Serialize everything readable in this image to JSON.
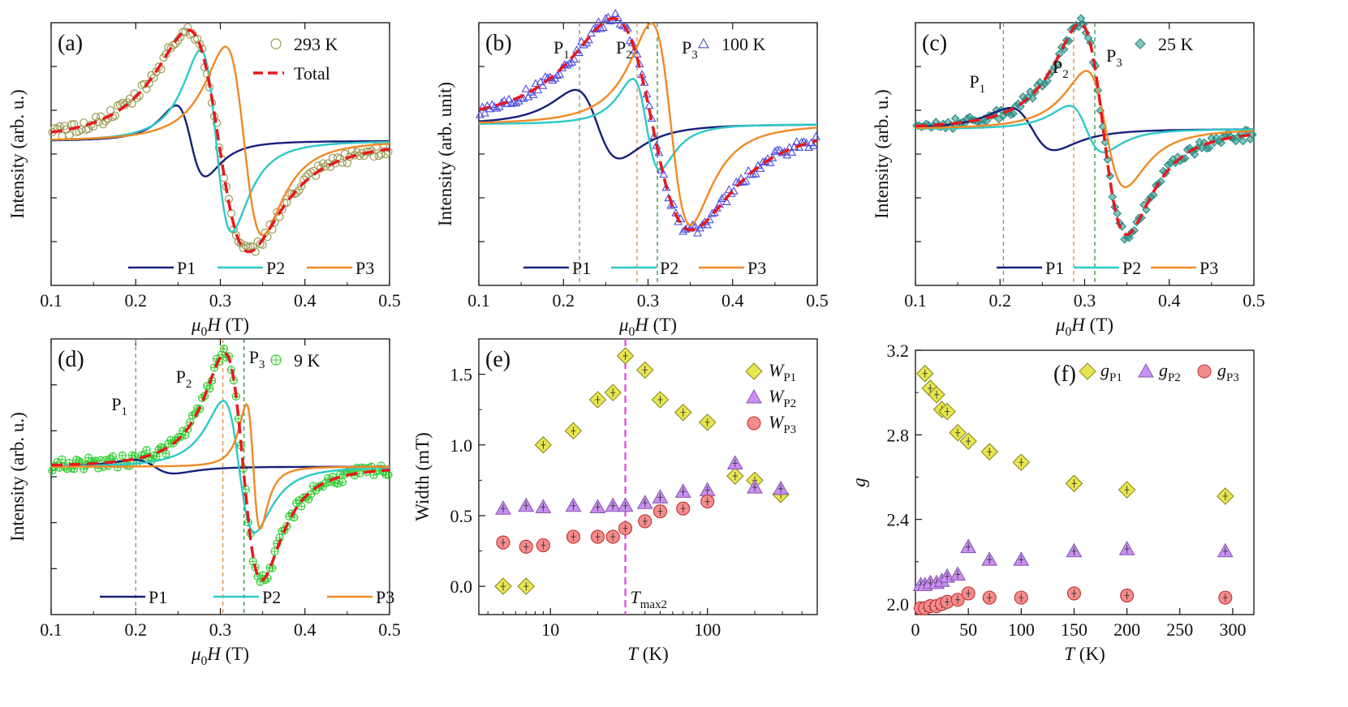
{
  "colors": {
    "P1": "#16217a",
    "P2": "#2ec9c7",
    "P3": "#f08a25",
    "total": "#e8181c",
    "exp_a": "#9a9a55",
    "exp_b": "#4a4adf",
    "exp_c": "#2a8f86",
    "exp_d": "#33cc33",
    "vline1": "#8a8a8a",
    "vline2": "#e08a40",
    "vline3": "#2f8f3f",
    "tmax": "#e040e0",
    "gP1": "#e8e650",
    "gP2": "#c98ff2",
    "gP3": "#f58c8c"
  },
  "chart_data": [
    {
      "id": "a",
      "type": "line",
      "panel_label": "(a)",
      "xlabel_italic": "μ",
      "xlabel_sub": "0",
      "xlabel_var": "H",
      "xlabel_unit": " (T)",
      "ylabel": "Intensity (arb. u.)",
      "xlim": [
        0.1,
        0.5
      ],
      "xticks": [
        "0.1",
        "0.2",
        "0.3",
        "0.4",
        "0.5"
      ],
      "temperature_label": "293 K",
      "total_label": "Total",
      "series": [
        {
          "name": "P1",
          "center": 0.265,
          "width": 0.03,
          "amp": 0.32,
          "base": 0.0
        },
        {
          "name": "P2",
          "center": 0.295,
          "width": 0.032,
          "amp": 0.82,
          "base": 0.0
        },
        {
          "name": "P3",
          "center": 0.328,
          "width": 0.038,
          "amp": 0.85,
          "base": 0.0
        }
      ],
      "experiment": {
        "marker": "circle",
        "center": 0.298,
        "width": 0.062,
        "amp": 1.0,
        "base": 0.0
      },
      "ylim": [
        -1.1,
        0.9
      ]
    },
    {
      "id": "b",
      "type": "line",
      "panel_label": "(b)",
      "xlabel_italic": "μ",
      "xlabel_sub": "0",
      "xlabel_var": "H",
      "xlabel_unit": " (T)",
      "ylabel": "Intensity (arb. unit)",
      "xlim": [
        0.1,
        0.5
      ],
      "xticks": [
        "0.1",
        "0.2",
        "0.3",
        "0.4",
        "0.5"
      ],
      "temperature_label": "100 K",
      "peak_labels": [
        "P",
        "P",
        "P"
      ],
      "peak_subs": [
        "1",
        "2",
        "3"
      ],
      "vlines": [
        0.219,
        0.287,
        0.311
      ],
      "series": [
        {
          "name": "P1",
          "center": 0.24,
          "width": 0.045,
          "amp": 0.34,
          "base": 0.05
        },
        {
          "name": "P2",
          "center": 0.298,
          "width": 0.028,
          "amp": 0.45,
          "base": 0.05
        },
        {
          "name": "P3",
          "center": 0.327,
          "width": 0.04,
          "amp": 1.0,
          "base": 0.05
        }
      ],
      "experiment": {
        "marker": "triangle",
        "center": 0.305,
        "width": 0.08,
        "amp": 1.05,
        "base": 0.05
      },
      "ylim": [
        -1.3,
        0.9
      ]
    },
    {
      "id": "c",
      "type": "line",
      "panel_label": "(c)",
      "xlabel_italic": "μ",
      "xlabel_sub": "0",
      "xlabel_var": "H",
      "xlabel_unit": " (T)",
      "ylabel": "Intensity (arb. u.)",
      "xlim": [
        0.1,
        0.5
      ],
      "xticks": [
        "0.1",
        "0.2",
        "0.3",
        "0.4",
        "0.5"
      ],
      "temperature_label": "25 K",
      "peak_labels": [
        "P",
        "P",
        "P"
      ],
      "peak_subs": [
        "1",
        "2",
        "3"
      ],
      "vlines": [
        0.204,
        0.287,
        0.312
      ],
      "series": [
        {
          "name": "P1",
          "center": 0.238,
          "width": 0.045,
          "amp": 0.2,
          "base": 0.0
        },
        {
          "name": "P2",
          "center": 0.302,
          "width": 0.035,
          "amp": 0.22,
          "base": 0.0
        },
        {
          "name": "P3",
          "center": 0.325,
          "width": 0.04,
          "amp": 0.55,
          "base": 0.0
        }
      ],
      "experiment": {
        "marker": "diamond",
        "center": 0.322,
        "width": 0.048,
        "amp": 1.0,
        "base": 0.0
      },
      "ylim": [
        -1.25,
        0.85
      ]
    },
    {
      "id": "d",
      "type": "line",
      "panel_label": "(d)",
      "xlabel_italic": "μ",
      "xlabel_sub": "0",
      "xlabel_var": "H",
      "xlabel_unit": " (T)",
      "ylabel": "Intensity (arb. u.)",
      "xlim": [
        0.1,
        0.5
      ],
      "xticks": [
        "0.1",
        "0.2",
        "0.3",
        "0.4",
        "0.5"
      ],
      "temperature_label": "9 K",
      "peak_labels": [
        "P",
        "P",
        "P"
      ],
      "peak_subs": [
        "1",
        "2",
        "3"
      ],
      "vlines": [
        0.2,
        0.303,
        0.328
      ],
      "series": [
        {
          "name": "P1",
          "center": 0.222,
          "width": 0.04,
          "amp": 0.06,
          "base": 0.0
        },
        {
          "name": "P2",
          "center": 0.322,
          "width": 0.032,
          "amp": 0.58,
          "base": 0.0
        },
        {
          "name": "P3",
          "center": 0.339,
          "width": 0.014,
          "amp": 0.55,
          "base": 0.0
        }
      ],
      "experiment": {
        "marker": "circlecross",
        "center": 0.327,
        "width": 0.038,
        "amp": 1.0,
        "base": 0.0
      },
      "ylim": [
        -1.1,
        0.95
      ]
    },
    {
      "id": "e",
      "type": "scatter",
      "panel_label": "(e)",
      "xlabel_var": "T",
      "xlabel_unit": " (K)",
      "ylabel": "Width (mT)",
      "xscale": "log",
      "xlim": [
        3.5,
        500
      ],
      "ylim": [
        -0.2,
        1.75
      ],
      "xticks": [
        {
          "v": 10,
          "label": "10"
        },
        {
          "v": 100,
          "label": "100"
        }
      ],
      "yticks": [
        {
          "v": 0.0,
          "label": "0.0"
        },
        {
          "v": 0.5,
          "label": "0.5"
        },
        {
          "v": 1.0,
          "label": "1.0"
        },
        {
          "v": 1.5,
          "label": "1.5"
        }
      ],
      "vline_x": 30,
      "vline_label": "T",
      "vline_sub": "max2",
      "legend_var": "W",
      "series": [
        {
          "name": "WP1",
          "label_sub": "P1",
          "marker": "diamond",
          "x": [
            5,
            7,
            9,
            14,
            20,
            25,
            30,
            40,
            50,
            70,
            100,
            150,
            200,
            293
          ],
          "y": [
            0.0,
            0.0,
            1.0,
            1.1,
            1.32,
            1.37,
            1.63,
            1.53,
            1.32,
            1.23,
            1.16,
            0.78,
            0.75,
            0.65
          ]
        },
        {
          "name": "WP2",
          "label_sub": "P2",
          "marker": "triangle",
          "x": [
            5,
            7,
            9,
            14,
            20,
            25,
            30,
            40,
            50,
            70,
            100,
            150,
            200,
            293
          ],
          "y": [
            0.55,
            0.57,
            0.56,
            0.57,
            0.56,
            0.57,
            0.57,
            0.59,
            0.63,
            0.67,
            0.68,
            0.87,
            0.7,
            0.69
          ]
        },
        {
          "name": "WP3",
          "label_sub": "P3",
          "marker": "circle",
          "x": [
            5,
            7,
            9,
            14,
            20,
            25,
            30,
            40,
            50,
            70,
            100
          ],
          "y": [
            0.31,
            0.28,
            0.29,
            0.35,
            0.35,
            0.35,
            0.41,
            0.46,
            0.53,
            0.55,
            0.6
          ]
        }
      ]
    },
    {
      "id": "f",
      "type": "scatter",
      "panel_label": "(f)",
      "xlabel_var": "T",
      "xlabel_unit": " (K)",
      "ylabel": "g",
      "xlim": [
        0,
        320
      ],
      "ylim": [
        1.95,
        3.2
      ],
      "xticks": [
        {
          "v": 0,
          "label": "0"
        },
        {
          "v": 50,
          "label": "50"
        },
        {
          "v": 100,
          "label": "100"
        },
        {
          "v": 150,
          "label": "150"
        },
        {
          "v": 200,
          "label": "200"
        },
        {
          "v": 250,
          "label": "250"
        },
        {
          "v": 300,
          "label": "300"
        }
      ],
      "yticks": [
        {
          "v": 2.0,
          "label": "2.0"
        },
        {
          "v": 2.4,
          "label": "2.4"
        },
        {
          "v": 2.8,
          "label": "2.8"
        },
        {
          "v": 3.2,
          "label": "3.2"
        }
      ],
      "legend_var": "g",
      "series": [
        {
          "name": "gP1",
          "label_sub": "P1",
          "marker": "diamond",
          "x": [
            9,
            14,
            20,
            25,
            30,
            40,
            50,
            70,
            100,
            150,
            200,
            293
          ],
          "y": [
            3.09,
            3.02,
            2.99,
            2.92,
            2.91,
            2.81,
            2.77,
            2.72,
            2.67,
            2.57,
            2.54,
            2.51
          ]
        },
        {
          "name": "gP2",
          "label_sub": "P2",
          "marker": "triangle",
          "x": [
            5,
            9,
            14,
            20,
            25,
            30,
            40,
            50,
            70,
            100,
            150,
            200,
            293
          ],
          "y": [
            2.09,
            2.09,
            2.1,
            2.1,
            2.11,
            2.13,
            2.14,
            2.27,
            2.21,
            2.21,
            2.25,
            2.26,
            2.25
          ]
        },
        {
          "name": "gP3",
          "label_sub": "P3",
          "marker": "circle",
          "x": [
            5,
            9,
            14,
            20,
            25,
            30,
            40,
            50,
            70,
            100,
            150,
            200,
            293
          ],
          "y": [
            1.98,
            1.98,
            1.99,
            1.99,
            2.0,
            2.01,
            2.02,
            2.05,
            2.03,
            2.03,
            2.05,
            2.04,
            2.03
          ]
        }
      ]
    }
  ]
}
